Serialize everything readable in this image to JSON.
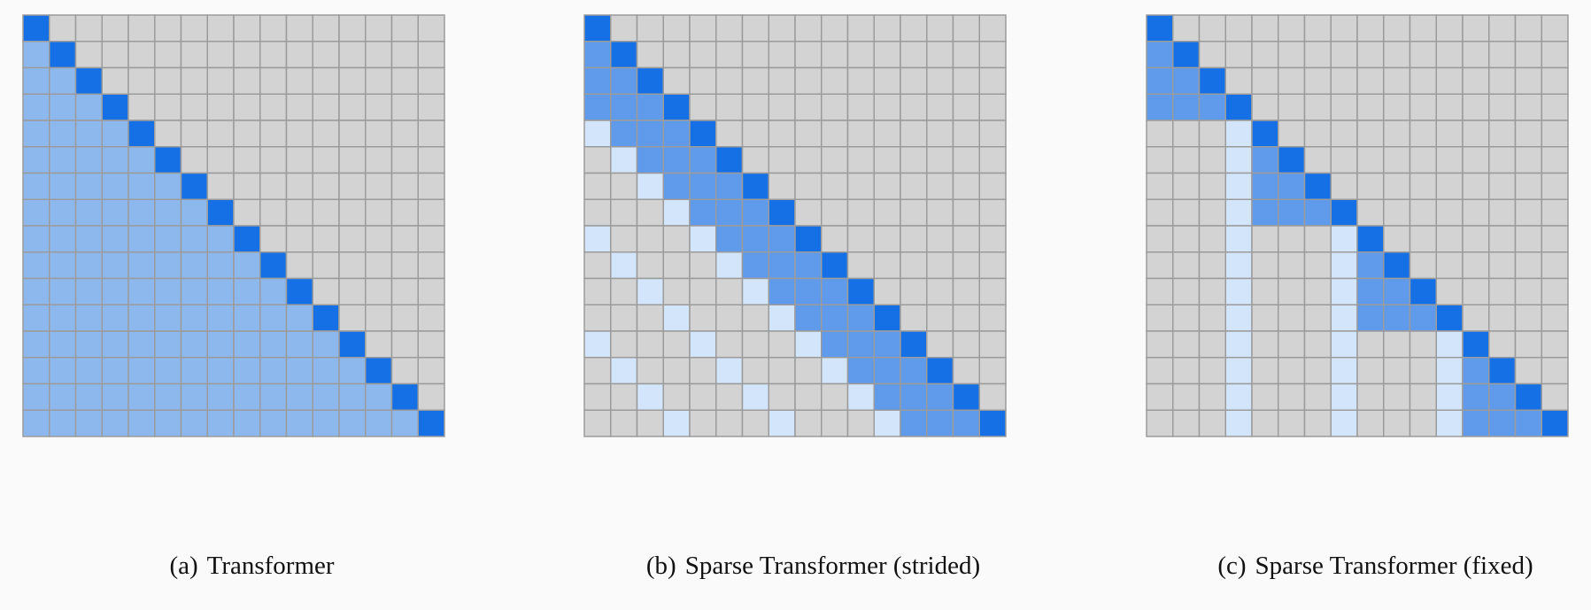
{
  "grid_size": 16,
  "colors": {
    "diagonal": "#1570e6",
    "full_attention": "#8db8ed",
    "local_attention": "#5f9bea",
    "strided_attention": "#d3e5fa",
    "empty": "#d3d3d3",
    "gridline": "#9b9b9b"
  },
  "panels": [
    {
      "tag": "(a)",
      "title": "Transformer",
      "pattern": "full"
    },
    {
      "tag": "(b)",
      "title": "Sparse Transformer (strided)",
      "pattern": "strided",
      "stride": 4
    },
    {
      "tag": "(c)",
      "title": "Sparse Transformer (fixed)",
      "pattern": "fixed",
      "block": 4
    }
  ]
}
